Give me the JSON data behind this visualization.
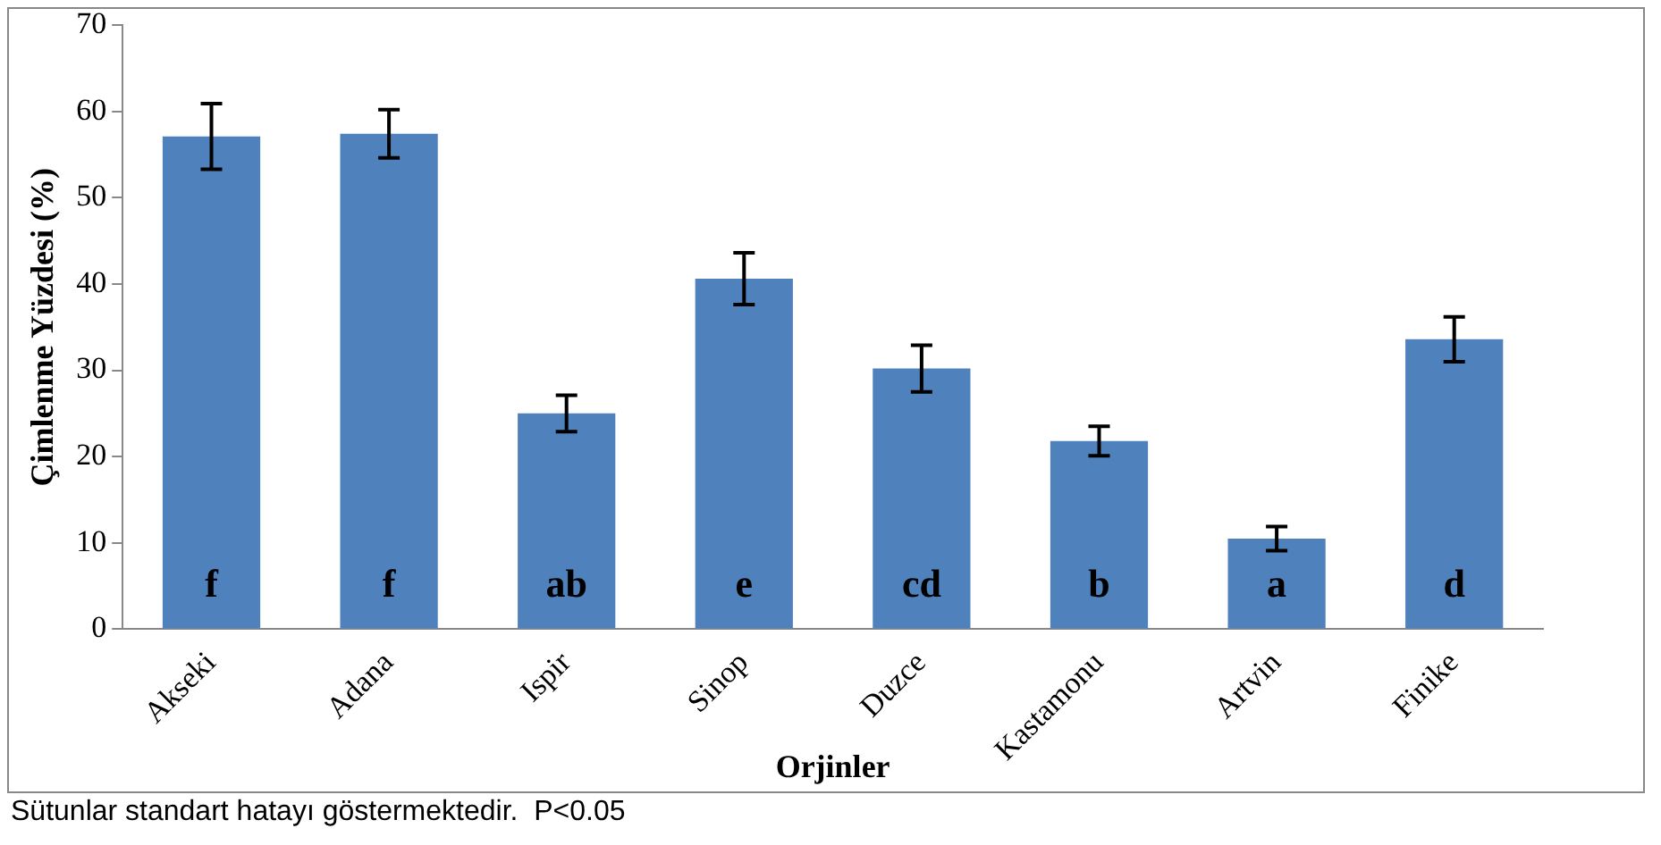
{
  "chart_data": {
    "type": "bar",
    "xlabel": "Orjinler",
    "ylabel": "Çimlenme Yüzdesi (%)",
    "categories": [
      "Akseki",
      "Adana",
      "Ispir",
      "Sinop",
      "Duzce",
      "Kastamonu",
      "Artvin",
      "Finike"
    ],
    "values": [
      57.1,
      57.4,
      25.0,
      40.6,
      30.2,
      21.8,
      10.5,
      33.6
    ],
    "errors": [
      3.8,
      2.8,
      2.1,
      3.0,
      2.7,
      1.7,
      1.4,
      2.6
    ],
    "color": "#4f81bd",
    "ylim": [
      0,
      70
    ],
    "yticks": [
      0,
      10,
      20,
      30,
      40,
      50,
      60,
      70
    ],
    "grid": false,
    "legend": false,
    "annotations": [
      "f",
      "f",
      "ab",
      "e",
      "cd",
      "b",
      "a",
      "d",
      "Sütunlar standart hatayı göstermektedir.  P<0.05"
    ]
  }
}
